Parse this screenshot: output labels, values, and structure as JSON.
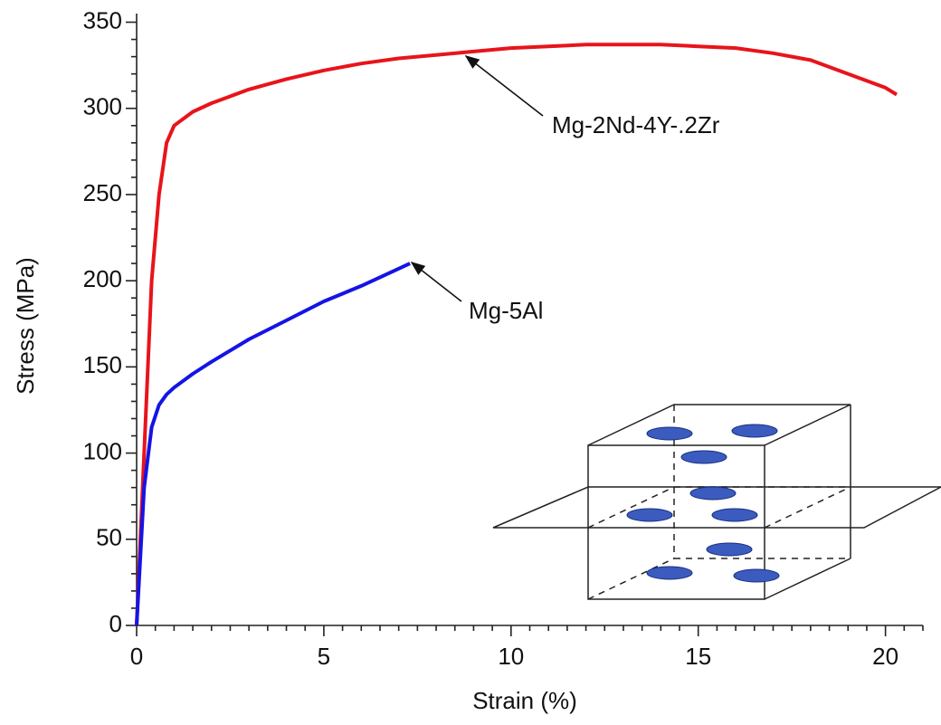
{
  "chart_data": {
    "type": "line",
    "xlabel": "Strain (%)",
    "ylabel": "Stress (MPa)",
    "xlim": [
      0,
      21
    ],
    "ylim": [
      0,
      355
    ],
    "xticks": [
      0,
      5,
      10,
      15,
      20
    ],
    "yticks": [
      0,
      50,
      100,
      150,
      200,
      250,
      300,
      350
    ],
    "series": [
      {
        "name": "Mg-2Nd-4Y-.2Zr",
        "color": "#e8141b",
        "x": [
          0,
          0.2,
          0.4,
          0.6,
          0.8,
          1.0,
          1.5,
          2,
          3,
          4,
          5,
          6,
          7,
          8,
          9,
          10,
          11,
          12,
          13,
          14,
          15,
          16,
          17,
          18,
          19,
          20,
          20.3
        ],
        "values": [
          0,
          100,
          200,
          250,
          280,
          290,
          298,
          303,
          311,
          317,
          322,
          326,
          329,
          331,
          333,
          335,
          336,
          337,
          337,
          337,
          336,
          335,
          332,
          328,
          320,
          312,
          308
        ]
      },
      {
        "name": "Mg-5Al",
        "color": "#1414e6",
        "x": [
          0,
          0.2,
          0.4,
          0.6,
          0.8,
          1.0,
          1.5,
          2,
          3,
          4,
          5,
          6,
          7,
          7.3
        ],
        "values": [
          0,
          80,
          115,
          128,
          134,
          138,
          146,
          153,
          166,
          177,
          188,
          197,
          207,
          210
        ]
      }
    ]
  }
}
